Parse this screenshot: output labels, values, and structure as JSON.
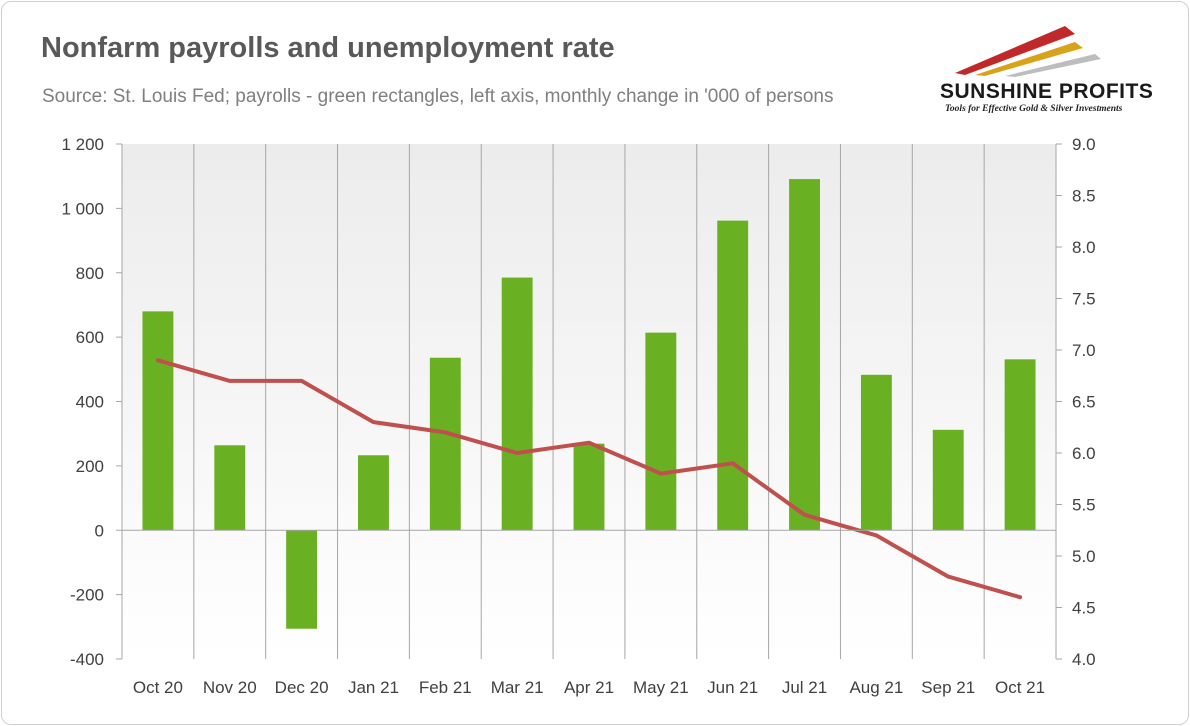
{
  "header": {
    "title": "Nonfarm payrolls and unemployment rate",
    "subtitle": "Source: St. Louis Fed; payrolls - green rectangles, left axis, monthly change in '000 of persons"
  },
  "logo": {
    "name": "SUNSHINE PROFITS",
    "tagline": "Tools for Effective Gold & Silver Investments"
  },
  "chart_data": {
    "type": "bar",
    "categories": [
      "Oct 20",
      "Nov 20",
      "Dec 20",
      "Jan 21",
      "Feb 21",
      "Mar 21",
      "Apr 21",
      "May 21",
      "Jun 21",
      "Jul 21",
      "Aug 21",
      "Sep 21",
      "Oct 21"
    ],
    "series": [
      {
        "type": "bar",
        "axis": "left",
        "color": "#6ab023",
        "values": [
          680,
          264,
          -306,
          233,
          536,
          785,
          269,
          614,
          962,
          1091,
          483,
          312,
          531
        ]
      },
      {
        "type": "line",
        "axis": "right",
        "color": "#c0504d",
        "values": [
          6.9,
          6.7,
          6.7,
          6.3,
          6.2,
          6.0,
          6.1,
          5.8,
          5.9,
          5.4,
          5.2,
          4.8,
          4.6
        ]
      }
    ],
    "y_left": {
      "range": [
        -400,
        1200
      ],
      "ticks": [
        -400,
        -200,
        0,
        200,
        400,
        600,
        800,
        1000,
        1200
      ],
      "tick_labels": [
        "-400",
        "-200",
        "0",
        "200",
        "400",
        "600",
        "800",
        "1 000",
        "1 200"
      ]
    },
    "y_right": {
      "range": [
        4.0,
        9.0
      ],
      "ticks": [
        4.0,
        4.5,
        5.0,
        5.5,
        6.0,
        6.5,
        7.0,
        7.5,
        8.0,
        8.5,
        9.0
      ],
      "tick_labels": [
        "4.0",
        "4.5",
        "5.0",
        "5.5",
        "6.0",
        "6.5",
        "7.0",
        "7.5",
        "8.0",
        "8.5",
        "9.0"
      ]
    },
    "grid": "vertical"
  }
}
